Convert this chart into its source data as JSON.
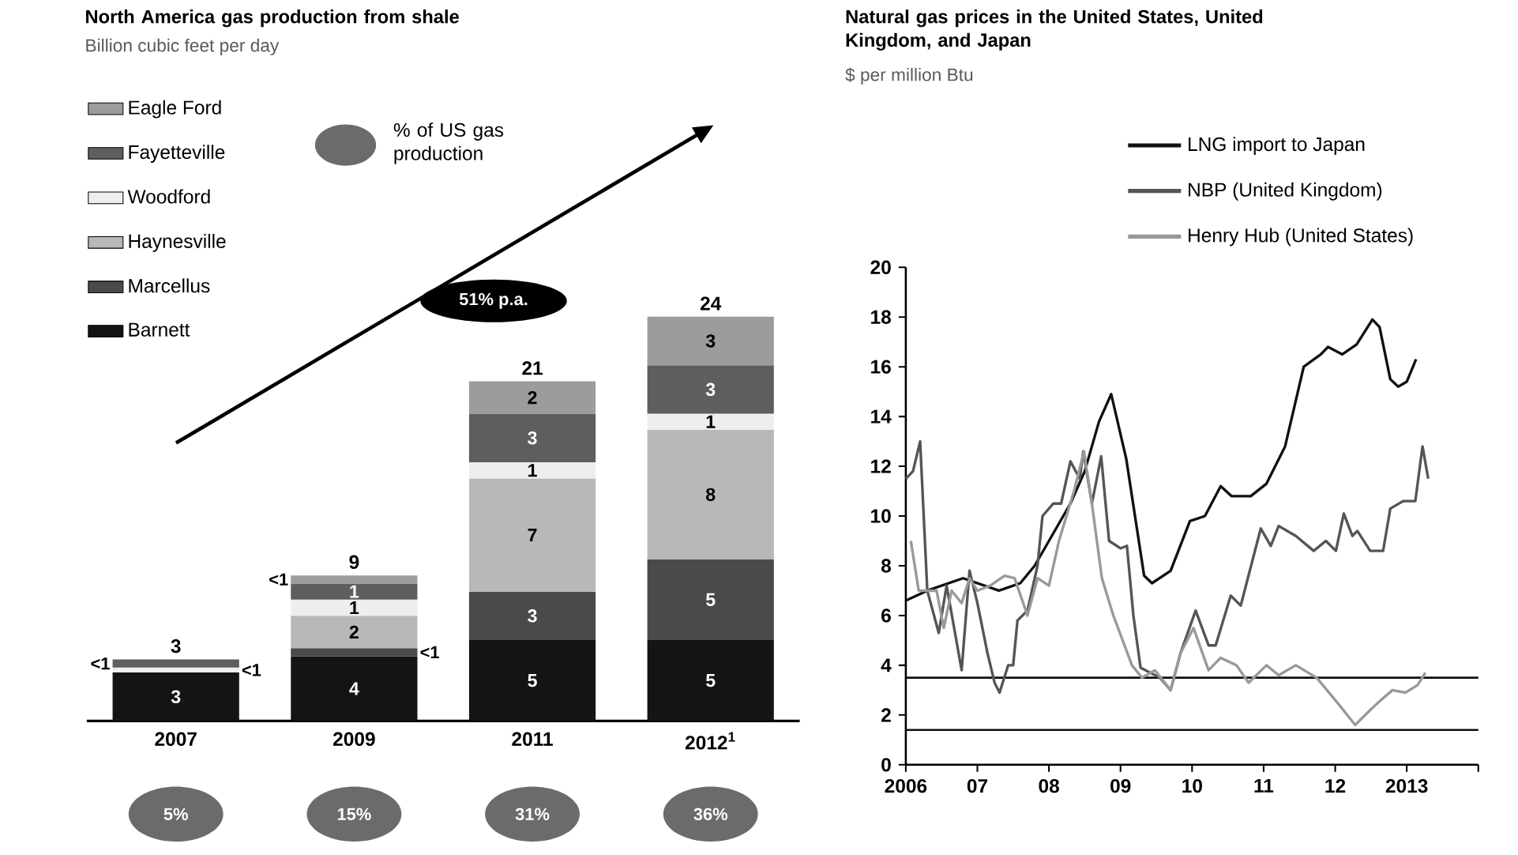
{
  "chart_data": [
    {
      "type": "bar",
      "stacked": true,
      "title": "North America gas production from shale",
      "subtitle": "Billion cubic feet per day",
      "categories": [
        "2007",
        "2009",
        "2011",
        "2012$^{1}$"
      ],
      "tick_labels": "x",
      "legend": "top left",
      "series": [
        {
          "name": "Barnett",
          "color": "#141414",
          "values": [
            3,
            4,
            5,
            5
          ],
          "value_labels": [
            "3",
            "4",
            "5",
            "5"
          ]
        },
        {
          "name": "Marcellus",
          "color": "#4a4a4a",
          "values": [
            null,
            0.5,
            3,
            5
          ],
          "value_labels": [
            null,
            "<1",
            "3",
            "5"
          ]
        },
        {
          "name": "Haynesville",
          "color": "#b8b8b8",
          "values": [
            null,
            2,
            7,
            8
          ],
          "value_labels": [
            null,
            "2",
            "7",
            "8"
          ]
        },
        {
          "name": "Woodford",
          "color": "#eeeeee",
          "values": [
            0.3,
            1,
            1,
            1
          ],
          "value_labels": [
            "<1",
            "1",
            "1",
            "1"
          ]
        },
        {
          "name": "Fayetteville",
          "color": "#5e5e5e",
          "values": [
            0.5,
            1,
            3,
            3
          ],
          "value_labels": [
            "<1",
            "1",
            "3",
            "3"
          ]
        },
        {
          "name": "Eagle Ford",
          "color": "#9c9c9c",
          "values": [
            null,
            0.5,
            2,
            3
          ],
          "value_labels": [
            null,
            "<1",
            "2",
            "3"
          ]
        }
      ],
      "totals": [
        "3",
        "9",
        "21",
        "24"
      ],
      "annotations": [
        "% of US gas production",
        "51% p.a.",
        "5%",
        "15%",
        "31%",
        "36%"
      ]
    },
    {
      "type": "line",
      "title": "Natural gas prices in the United States, United Kingdom, and Japan",
      "subtitle": "$ per million Btu",
      "legend": "top right",
      "xlim": [
        2006,
        2014
      ],
      "ylim": [
        0,
        20
      ],
      "xticks": [
        2006,
        {
          "value": 2007,
          "label": "07"
        },
        {
          "value": 2008,
          "label": "08"
        },
        {
          "value": 2009,
          "label": "09"
        },
        {
          "value": 2010,
          "label": "10"
        },
        {
          "value": 2011,
          "label": "11"
        },
        {
          "value": 2012,
          "label": "12"
        },
        2013,
        {
          "value": 2014,
          "label": null
        }
      ],
      "yticks": [
        0,
        2,
        4,
        6,
        8,
        10,
        12,
        14,
        16,
        18,
        20
      ],
      "ref_lines": [
        {
          "axis": "y",
          "value": 3.5,
          "color": "#111111"
        },
        {
          "axis": "y",
          "value": 1.4,
          "color": "#111111"
        }
      ],
      "series": [
        {
          "name": "LNG import to Japan",
          "color": "#111111",
          "x": [
            2006.0,
            2006.3,
            2006.8,
            2007.3,
            2007.6,
            2007.8,
            2008.0,
            2008.3,
            2008.5,
            2008.7,
            2008.87,
            2009.08,
            2009.33,
            2009.44,
            2009.7,
            2009.97,
            2010.18,
            2010.4,
            2010.55,
            2010.82,
            2011.04,
            2011.3,
            2011.56,
            2011.8,
            2011.9,
            2012.1,
            2012.3,
            2012.52,
            2012.62,
            2012.77,
            2012.88,
            2013.0,
            2013.13
          ],
          "values": [
            6.6,
            7.0,
            7.5,
            7.0,
            7.3,
            8.0,
            9.0,
            10.5,
            11.8,
            13.8,
            14.9,
            12.3,
            7.6,
            7.3,
            7.8,
            9.8,
            10.0,
            11.2,
            10.8,
            10.8,
            11.3,
            12.8,
            16.0,
            16.5,
            16.8,
            16.5,
            16.9,
            17.9,
            17.6,
            15.5,
            15.2,
            15.4,
            16.3
          ]
        },
        {
          "name": "NBP (United Kingdom)",
          "color": "#555555",
          "x": [
            2006.0,
            2006.1,
            2006.2,
            2006.3,
            2006.46,
            2006.57,
            2006.78,
            2006.89,
            2007.0,
            2007.14,
            2007.24,
            2007.31,
            2007.43,
            2007.5,
            2007.56,
            2007.7,
            2007.84,
            2007.91,
            2008.06,
            2008.17,
            2008.3,
            2008.43,
            2008.48,
            2008.6,
            2008.73,
            2008.84,
            2009.0,
            2009.09,
            2009.18,
            2009.28,
            2009.55,
            2009.7,
            2009.84,
            2010.05,
            2010.23,
            2010.33,
            2010.54,
            2010.68,
            2010.96,
            2011.1,
            2011.21,
            2011.45,
            2011.7,
            2011.87,
            2012.01,
            2012.12,
            2012.24,
            2012.31,
            2012.49,
            2012.67,
            2012.77,
            2012.95,
            2013.12,
            2013.22,
            2013.3
          ],
          "values": [
            11.5,
            11.8,
            13.0,
            7.0,
            5.3,
            7.2,
            3.8,
            7.8,
            6.5,
            4.5,
            3.3,
            2.9,
            4.0,
            4.0,
            5.8,
            6.2,
            8.0,
            10.0,
            10.5,
            10.5,
            12.2,
            11.5,
            12.6,
            10.5,
            12.4,
            9.0,
            8.7,
            8.8,
            6.0,
            3.9,
            3.5,
            3.0,
            4.5,
            6.2,
            4.8,
            4.8,
            6.8,
            6.4,
            9.5,
            8.8,
            9.6,
            9.2,
            8.6,
            9.0,
            8.6,
            10.1,
            9.2,
            9.4,
            8.6,
            8.6,
            10.3,
            10.6,
            10.6,
            12.8,
            11.5
          ]
        },
        {
          "name": "Henry Hub (United States)",
          "color": "#999999",
          "x": [
            2006.07,
            2006.18,
            2006.43,
            2006.53,
            2006.64,
            2006.78,
            2006.89,
            2007.0,
            2007.18,
            2007.38,
            2007.52,
            2007.7,
            2007.84,
            2008.0,
            2008.14,
            2008.35,
            2008.49,
            2008.6,
            2008.74,
            2008.9,
            2009.16,
            2009.3,
            2009.48,
            2009.7,
            2009.84,
            2010.02,
            2010.23,
            2010.4,
            2010.62,
            2010.79,
            2011.04,
            2011.21,
            2011.45,
            2011.74,
            2012.03,
            2012.28,
            2012.49,
            2012.6,
            2012.8,
            2012.98,
            2013.15,
            2013.26
          ],
          "values": [
            9.0,
            7.0,
            7.0,
            5.5,
            7.0,
            6.5,
            7.5,
            7.0,
            7.2,
            7.6,
            7.5,
            6.0,
            7.5,
            7.2,
            9.0,
            11.0,
            12.6,
            10.5,
            7.5,
            6.0,
            4.0,
            3.5,
            3.8,
            3.0,
            4.5,
            5.5,
            3.8,
            4.3,
            4.0,
            3.3,
            4.0,
            3.6,
            4.0,
            3.5,
            2.5,
            1.6,
            2.2,
            2.5,
            3.0,
            2.9,
            3.2,
            3.7
          ]
        }
      ]
    }
  ]
}
